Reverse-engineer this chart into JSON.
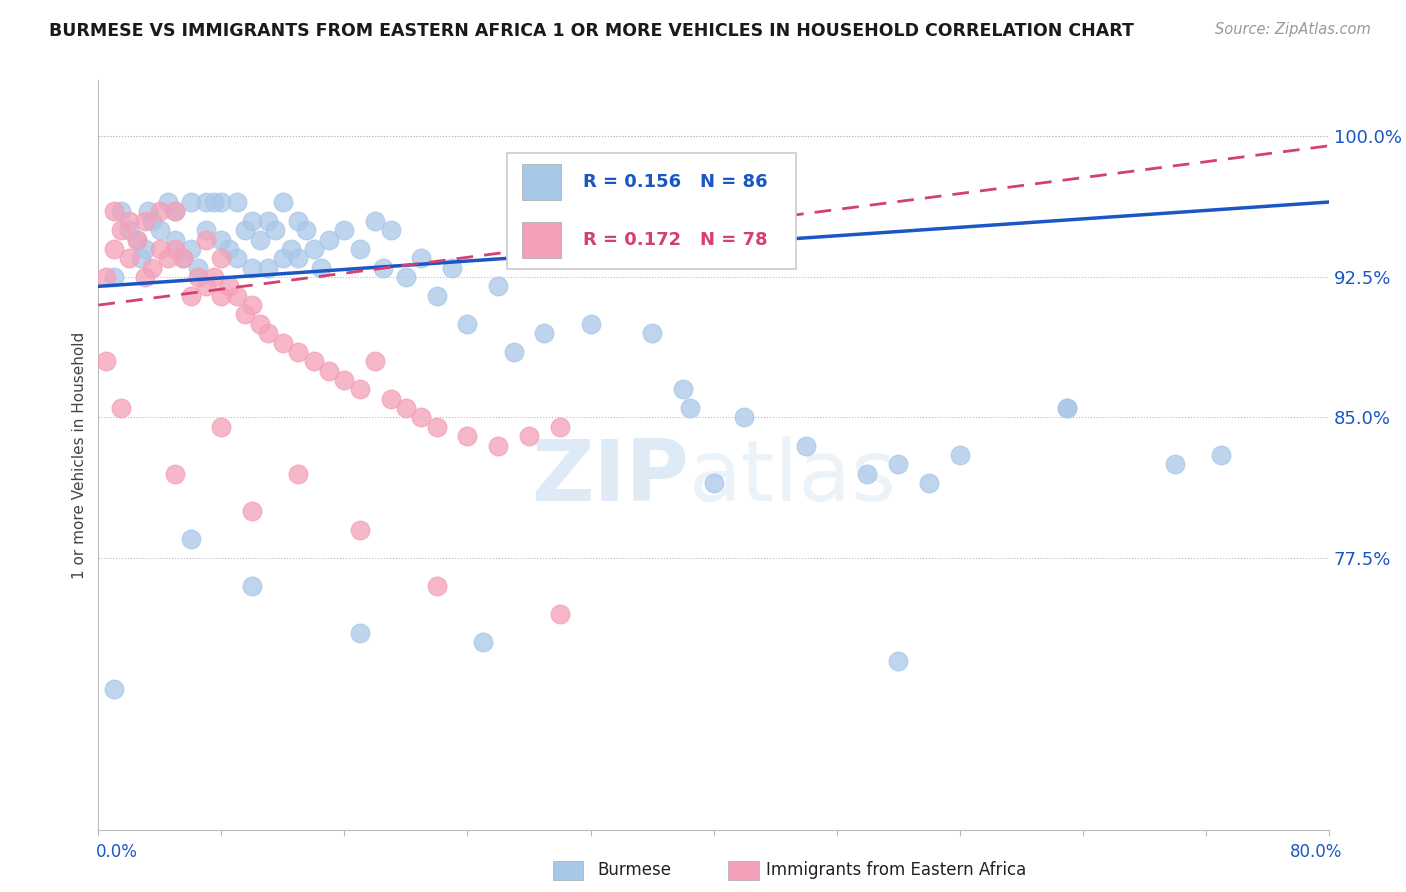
{
  "title": "BURMESE VS IMMIGRANTS FROM EASTERN AFRICA 1 OR MORE VEHICLES IN HOUSEHOLD CORRELATION CHART",
  "source": "Source: ZipAtlas.com",
  "ylabel": "1 or more Vehicles in Household",
  "xmin": 0.0,
  "xmax": 80.0,
  "ymin": 63.0,
  "ymax": 103.0,
  "yticks": [
    77.5,
    85.0,
    92.5,
    100.0
  ],
  "blue_color": "#a8c8e8",
  "pink_color": "#f4a0b8",
  "blue_line_color": "#1a56c4",
  "pink_line_color": "#d44070",
  "legend_blue_R": "R = 0.156",
  "legend_blue_N": "N = 86",
  "legend_pink_R": "R = 0.172",
  "legend_pink_N": "N = 78",
  "watermark_zip": "ZIP",
  "watermark_atlas": "atlas",
  "blue_scatter_x": [
    1.0,
    1.5,
    2.0,
    2.5,
    2.8,
    3.0,
    3.2,
    3.5,
    4.0,
    4.5,
    5.0,
    5.0,
    5.5,
    6.0,
    6.0,
    6.5,
    7.0,
    7.0,
    7.5,
    8.0,
    8.0,
    8.5,
    9.0,
    9.0,
    9.5,
    10.0,
    10.0,
    10.5,
    11.0,
    11.0,
    11.5,
    12.0,
    12.0,
    12.5,
    13.0,
    13.0,
    13.5,
    14.0,
    14.5,
    15.0,
    16.0,
    17.0,
    18.0,
    18.5,
    19.0,
    20.0,
    21.0,
    22.0,
    23.0,
    24.0,
    26.0,
    27.0,
    29.0,
    32.0,
    36.0,
    38.0,
    38.5,
    42.0,
    46.0,
    50.0,
    52.0,
    54.0,
    56.0,
    63.0,
    70.0,
    73.0
  ],
  "blue_scatter_y": [
    92.5,
    96.0,
    95.0,
    94.5,
    93.5,
    94.0,
    96.0,
    95.5,
    95.0,
    96.5,
    94.5,
    96.0,
    93.5,
    94.0,
    96.5,
    93.0,
    95.0,
    96.5,
    96.5,
    94.5,
    96.5,
    94.0,
    93.5,
    96.5,
    95.0,
    93.0,
    95.5,
    94.5,
    93.0,
    95.5,
    95.0,
    93.5,
    96.5,
    94.0,
    93.5,
    95.5,
    95.0,
    94.0,
    93.0,
    94.5,
    95.0,
    94.0,
    95.5,
    93.0,
    95.0,
    92.5,
    93.5,
    91.5,
    93.0,
    90.0,
    92.0,
    88.5,
    89.5,
    90.0,
    89.5,
    86.5,
    85.5,
    85.0,
    83.5,
    82.0,
    82.5,
    81.5,
    83.0,
    85.5,
    82.5,
    83.0
  ],
  "blue_outlier_x": [
    1.0,
    6.0,
    10.0,
    17.0,
    25.0,
    40.0,
    52.0,
    63.0
  ],
  "blue_outlier_y": [
    70.5,
    78.5,
    76.0,
    73.5,
    73.0,
    81.5,
    72.0,
    85.5
  ],
  "pink_scatter_x": [
    0.5,
    1.0,
    1.0,
    1.5,
    2.0,
    2.0,
    2.5,
    3.0,
    3.0,
    3.5,
    4.0,
    4.0,
    4.5,
    5.0,
    5.0,
    5.5,
    6.0,
    6.5,
    7.0,
    7.0,
    7.5,
    8.0,
    8.0,
    8.5,
    9.0,
    9.5,
    10.0,
    10.5,
    11.0,
    12.0,
    13.0,
    14.0,
    15.0,
    16.0,
    17.0,
    18.0,
    19.0,
    20.0,
    21.0,
    22.0,
    24.0,
    26.0,
    28.0,
    30.0
  ],
  "pink_scatter_y": [
    92.5,
    94.0,
    96.0,
    95.0,
    93.5,
    95.5,
    94.5,
    92.5,
    95.5,
    93.0,
    94.0,
    96.0,
    93.5,
    94.0,
    96.0,
    93.5,
    91.5,
    92.5,
    92.0,
    94.5,
    92.5,
    91.5,
    93.5,
    92.0,
    91.5,
    90.5,
    91.0,
    90.0,
    89.5,
    89.0,
    88.5,
    88.0,
    87.5,
    87.0,
    86.5,
    88.0,
    86.0,
    85.5,
    85.0,
    84.5,
    84.0,
    83.5,
    84.0,
    84.5
  ],
  "pink_outlier_x": [
    0.5,
    1.5,
    5.0,
    8.0,
    10.0,
    13.0,
    17.0,
    22.0,
    30.0
  ],
  "pink_outlier_y": [
    88.0,
    85.5,
    82.0,
    84.5,
    80.0,
    82.0,
    79.0,
    76.0,
    74.5
  ],
  "blue_line_x0": 0.0,
  "blue_line_y0": 92.0,
  "blue_line_x1": 80.0,
  "blue_line_y1": 96.5,
  "pink_line_x0": 0.0,
  "pink_line_y0": 91.0,
  "pink_line_x1": 80.0,
  "pink_line_y1": 99.5
}
